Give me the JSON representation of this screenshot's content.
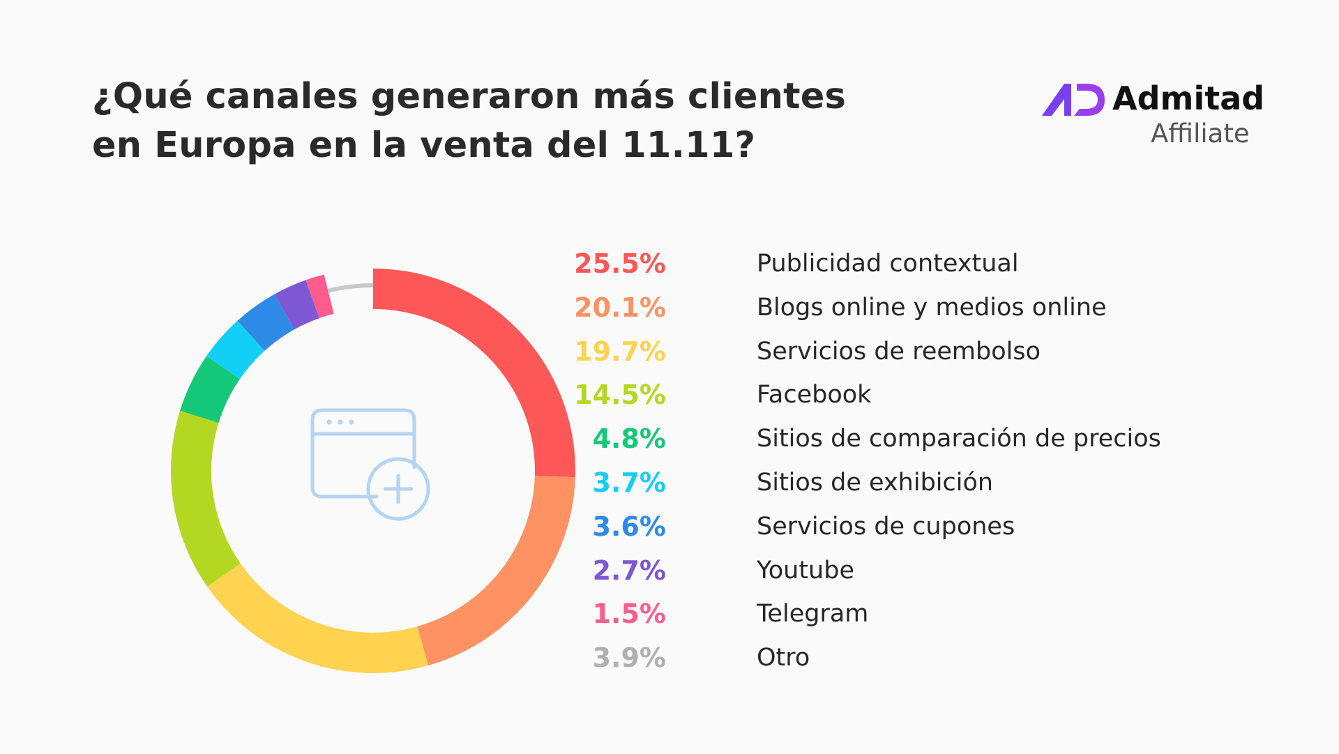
{
  "header": {
    "title_line1": "¿Qué canales generaron más clientes",
    "title_line2": "en Europa en la venta del 11.11?"
  },
  "brand": {
    "name": "Admitad",
    "subtitle": "Affiliate",
    "logo_colors": [
      "#7b3ff2",
      "#a040f0"
    ]
  },
  "center_icon": "browser-window-add-icon",
  "chart_data": {
    "type": "pie",
    "style": "donut",
    "title": "¿Qué canales generaron más clientes en Europa en la venta del 11.11?",
    "slices": [
      {
        "label": "Publicidad contextual",
        "value": 25.5,
        "display": "25.5%",
        "color": "#fe5757"
      },
      {
        "label": "Blogs online y medios online",
        "value": 20.1,
        "display": "20.1%",
        "color": "#ff9263"
      },
      {
        "label": "Servicios de reembolso",
        "value": 19.7,
        "display": "19.7%",
        "color": "#ffd24f"
      },
      {
        "label": "Facebook",
        "value": 14.5,
        "display": "14.5%",
        "color": "#b4d722"
      },
      {
        "label": "Sitios de comparación de precios",
        "value": 4.8,
        "display": "4.8%",
        "color": "#14c87a"
      },
      {
        "label": "Sitios de exhibición",
        "value": 3.7,
        "display": "3.7%",
        "color": "#12d0f5"
      },
      {
        "label": "Servicios de cupones",
        "value": 3.6,
        "display": "3.6%",
        "color": "#2d8ae6"
      },
      {
        "label": "Youtube",
        "value": 2.7,
        "display": "2.7%",
        "color": "#7e57d4"
      },
      {
        "label": "Telegram",
        "value": 1.5,
        "display": "1.5%",
        "color": "#ff5c8e"
      },
      {
        "label": "Otro",
        "value": 3.9,
        "display": "3.9%",
        "color": "#c8c8c8"
      }
    ],
    "legend_position": "right"
  }
}
